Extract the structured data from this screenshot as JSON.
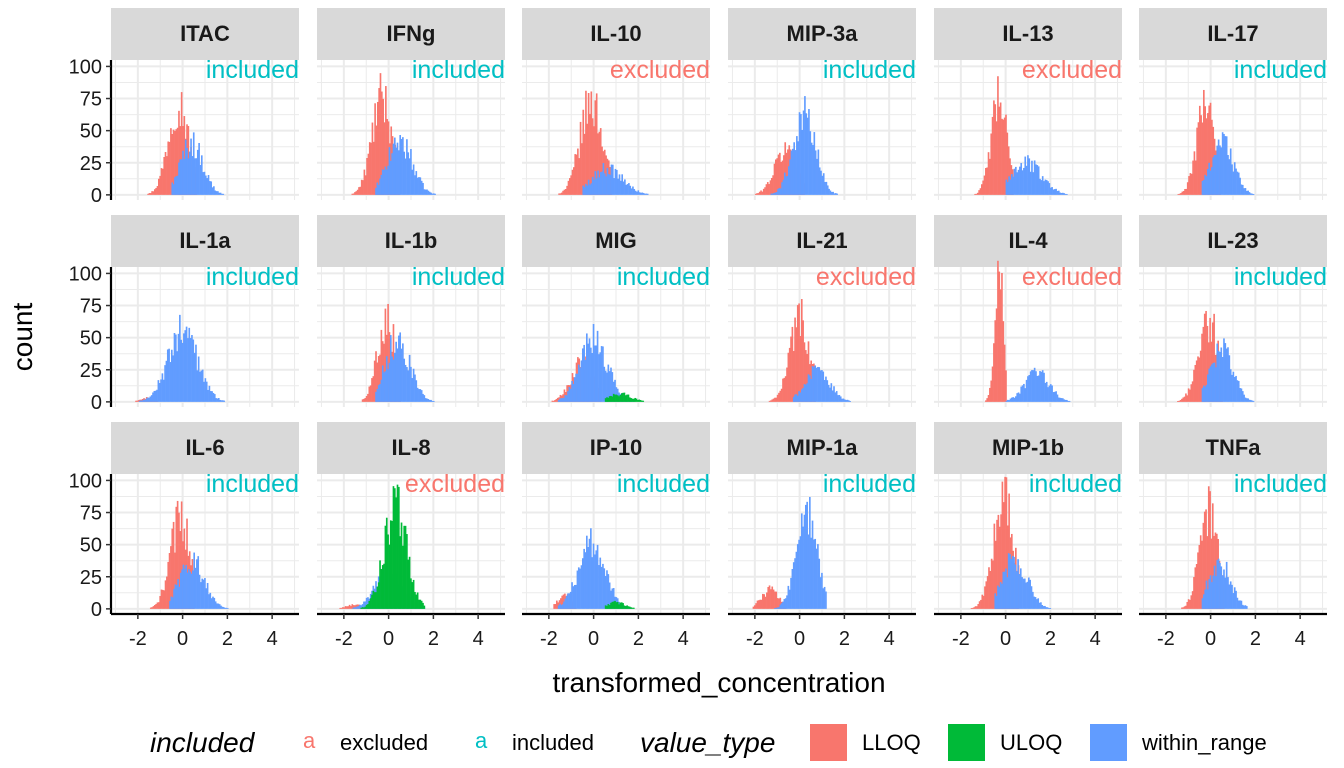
{
  "chart_data": {
    "type": "histogram",
    "xlabel": "transformed_concentration",
    "ylabel": "count",
    "xlim": [
      -3.2,
      5.2
    ],
    "ylim": [
      -4,
      105
    ],
    "x_ticks": [
      -2,
      0,
      2,
      4
    ],
    "x_tick_labels": [
      "-2",
      "0",
      "2",
      "4"
    ],
    "y_ticks": [
      0,
      25,
      50,
      75,
      100
    ],
    "y_tick_labels": [
      "0",
      "25",
      "50",
      "75",
      "100"
    ],
    "grid": true,
    "legend_position": "bottom",
    "fill_legend": {
      "title": "value_type",
      "items": [
        {
          "label": "LLOQ",
          "color": "#F8766D"
        },
        {
          "label": "ULOQ",
          "color": "#00BA38"
        },
        {
          "label": "within_range",
          "color": "#619CFF"
        }
      ]
    },
    "color_legend": {
      "title": "included",
      "key_glyph": "a",
      "items": [
        {
          "label": "excluded",
          "color": "#F8766D"
        },
        {
          "label": "included",
          "color": "#00BFC4"
        }
      ]
    },
    "panels": [
      {
        "name": "ITAC",
        "tag": "included",
        "series": [
          {
            "type": "LLOQ",
            "mean": -0.2,
            "sd": 0.45,
            "peak": 72,
            "lo": -2.0,
            "hi": 0.6
          },
          {
            "type": "within_range",
            "mean": 0.4,
            "sd": 0.5,
            "peak": 40,
            "lo": -0.5,
            "hi": 3.0
          }
        ]
      },
      {
        "name": "IFNg",
        "tag": "included",
        "series": [
          {
            "type": "LLOQ",
            "mean": -0.3,
            "sd": 0.45,
            "peak": 75,
            "lo": -1.9,
            "hi": 0.5
          },
          {
            "type": "within_range",
            "mean": 0.5,
            "sd": 0.55,
            "peak": 42,
            "lo": -0.6,
            "hi": 2.2
          }
        ]
      },
      {
        "name": "IL-10",
        "tag": "excluded",
        "series": [
          {
            "type": "LLOQ",
            "mean": -0.1,
            "sd": 0.5,
            "peak": 72,
            "lo": -2.0,
            "hi": 0.8
          },
          {
            "type": "within_range",
            "mean": 0.6,
            "sd": 0.7,
            "peak": 20,
            "lo": -0.5,
            "hi": 4.8
          }
        ]
      },
      {
        "name": "MIP-3a",
        "tag": "included",
        "series": [
          {
            "type": "LLOQ",
            "mean": -0.6,
            "sd": 0.5,
            "peak": 35,
            "lo": -2.0,
            "hi": 0.2
          },
          {
            "type": "within_range",
            "mean": 0.2,
            "sd": 0.5,
            "peak": 62,
            "lo": -1.3,
            "hi": 2.2
          }
        ]
      },
      {
        "name": "IL-13",
        "tag": "excluded",
        "series": [
          {
            "type": "LLOQ",
            "mean": -0.3,
            "sd": 0.35,
            "peak": 74,
            "lo": -2.0,
            "hi": 0.3
          },
          {
            "type": "within_range",
            "mean": 0.9,
            "sd": 0.7,
            "peak": 25,
            "lo": 0.0,
            "hi": 3.2
          }
        ]
      },
      {
        "name": "IL-17",
        "tag": "included",
        "series": [
          {
            "type": "LLOQ",
            "mean": -0.2,
            "sd": 0.4,
            "peak": 73,
            "lo": -1.6,
            "hi": 0.4
          },
          {
            "type": "within_range",
            "mean": 0.5,
            "sd": 0.5,
            "peak": 42,
            "lo": -0.4,
            "hi": 2.2
          }
        ]
      },
      {
        "name": "IL-1a",
        "tag": "included",
        "series": [
          {
            "type": "LLOQ",
            "mean": -1.6,
            "sd": 0.3,
            "peak": 3,
            "lo": -2.6,
            "hi": -1.0
          },
          {
            "type": "within_range",
            "mean": 0.0,
            "sd": 0.65,
            "peak": 55,
            "lo": -2.5,
            "hi": 2.5
          }
        ]
      },
      {
        "name": "IL-1b",
        "tag": "included",
        "series": [
          {
            "type": "LLOQ",
            "mean": -0.1,
            "sd": 0.4,
            "peak": 65,
            "lo": -1.2,
            "hi": 0.5
          },
          {
            "type": "within_range",
            "mean": 0.4,
            "sd": 0.55,
            "peak": 48,
            "lo": -0.6,
            "hi": 2.2
          }
        ]
      },
      {
        "name": "MIG",
        "tag": "included",
        "series": [
          {
            "type": "LLOQ",
            "mean": -0.5,
            "sd": 0.5,
            "peak": 30,
            "lo": -2.0,
            "hi": 0.3
          },
          {
            "type": "within_range",
            "mean": 0.0,
            "sd": 0.6,
            "peak": 48,
            "lo": -1.6,
            "hi": 2.5
          },
          {
            "type": "ULOQ",
            "mean": 1.2,
            "sd": 0.5,
            "peak": 6,
            "lo": 0.5,
            "hi": 2.6
          }
        ]
      },
      {
        "name": "IL-21",
        "tag": "excluded",
        "series": [
          {
            "type": "LLOQ",
            "mean": 0.0,
            "sd": 0.45,
            "peak": 65,
            "lo": -1.8,
            "hi": 0.7
          },
          {
            "type": "within_range",
            "mean": 0.8,
            "sd": 0.55,
            "peak": 24,
            "lo": -0.3,
            "hi": 3.0
          }
        ]
      },
      {
        "name": "IL-4",
        "tag": "excluded",
        "series": [
          {
            "type": "LLOQ",
            "mean": -0.3,
            "sd": 0.2,
            "peak": 102,
            "lo": -1.4,
            "hi": 0.0
          },
          {
            "type": "within_range",
            "mean": 1.4,
            "sd": 0.55,
            "peak": 22,
            "lo": 0.0,
            "hi": 3.2
          }
        ]
      },
      {
        "name": "IL-23",
        "tag": "included",
        "series": [
          {
            "type": "LLOQ",
            "mean": -0.1,
            "sd": 0.45,
            "peak": 64,
            "lo": -1.8,
            "hi": 0.5
          },
          {
            "type": "within_range",
            "mean": 0.5,
            "sd": 0.5,
            "peak": 40,
            "lo": -0.4,
            "hi": 2.2
          }
        ]
      },
      {
        "name": "IL-6",
        "tag": "included",
        "series": [
          {
            "type": "LLOQ",
            "mean": -0.1,
            "sd": 0.45,
            "peak": 70,
            "lo": -1.7,
            "hi": 0.5
          },
          {
            "type": "within_range",
            "mean": 0.4,
            "sd": 0.55,
            "peak": 38,
            "lo": -0.6,
            "hi": 3.0
          }
        ]
      },
      {
        "name": "IL-8",
        "tag": "excluded",
        "series": [
          {
            "type": "LLOQ",
            "mean": -1.5,
            "sd": 0.4,
            "peak": 3,
            "lo": -2.5,
            "hi": -0.8
          },
          {
            "type": "within_range",
            "mean": 0.0,
            "sd": 0.6,
            "peak": 28,
            "lo": -1.8,
            "hi": 1.6
          },
          {
            "type": "ULOQ",
            "mean": 0.3,
            "sd": 0.5,
            "peak": 80,
            "lo": -1.8,
            "hi": 1.6
          }
        ]
      },
      {
        "name": "IP-10",
        "tag": "included",
        "series": [
          {
            "type": "LLOQ",
            "mean": -1.3,
            "sd": 0.3,
            "peak": 10,
            "lo": -1.8,
            "hi": -0.8
          },
          {
            "type": "within_range",
            "mean": -0.1,
            "sd": 0.6,
            "peak": 50,
            "lo": -1.6,
            "hi": 2.4
          },
          {
            "type": "ULOQ",
            "mean": 1.0,
            "sd": 0.4,
            "peak": 5,
            "lo": 0.5,
            "hi": 2.5
          }
        ]
      },
      {
        "name": "MIP-1a",
        "tag": "included",
        "series": [
          {
            "type": "LLOQ",
            "mean": -1.3,
            "sd": 0.4,
            "peak": 15,
            "lo": -2.1,
            "hi": -0.6
          },
          {
            "type": "within_range",
            "mean": 0.3,
            "sd": 0.45,
            "peak": 75,
            "lo": -1.2,
            "hi": 1.2
          }
        ]
      },
      {
        "name": "MIP-1b",
        "tag": "included",
        "series": [
          {
            "type": "LLOQ",
            "mean": -0.1,
            "sd": 0.45,
            "peak": 85,
            "lo": -1.8,
            "hi": 0.6
          },
          {
            "type": "within_range",
            "mean": 0.4,
            "sd": 0.55,
            "peak": 40,
            "lo": -0.5,
            "hi": 2.0
          }
        ]
      },
      {
        "name": "TNFa",
        "tag": "included",
        "series": [
          {
            "type": "LLOQ",
            "mean": -0.1,
            "sd": 0.4,
            "peak": 78,
            "lo": -1.5,
            "hi": 0.6
          },
          {
            "type": "within_range",
            "mean": 0.4,
            "sd": 0.5,
            "peak": 35,
            "lo": -0.4,
            "hi": 1.6
          }
        ]
      }
    ]
  }
}
